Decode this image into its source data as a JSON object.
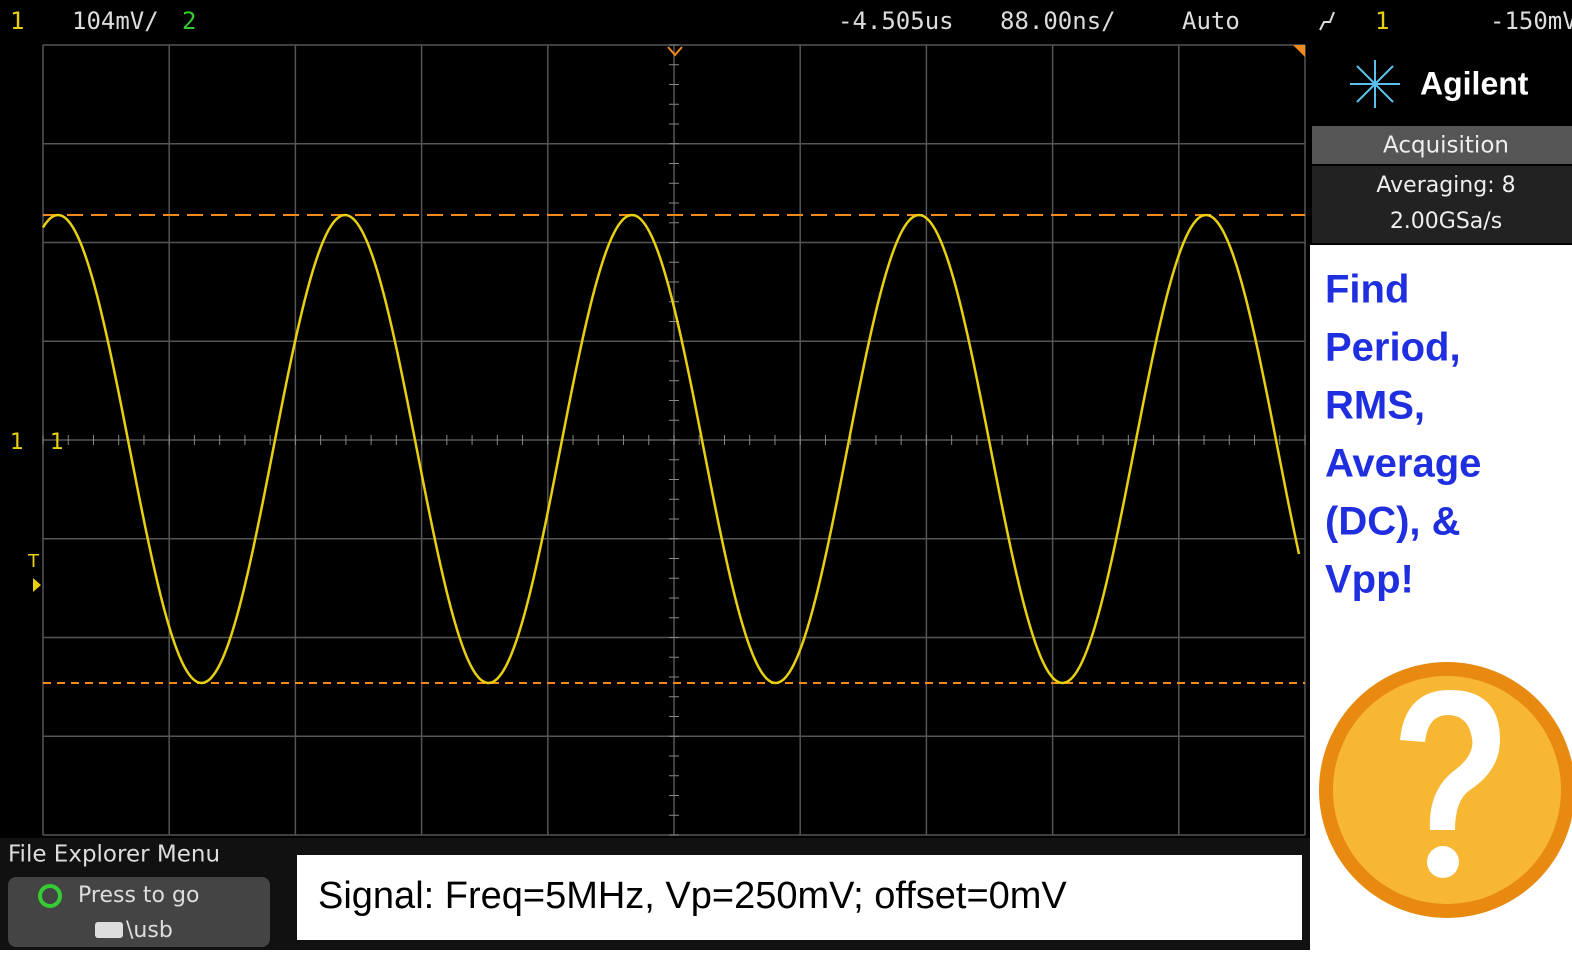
{
  "status_bar": {
    "channel": "1",
    "scale": "104mV/",
    "channel2": "2",
    "delay": "-4.505us",
    "timebase": "88.00ns/",
    "mode": "Auto",
    "trigger_source": "1",
    "trigger_level": "-150mV"
  },
  "markers": {
    "channel": "1",
    "trigger": "T"
  },
  "panel": {
    "brand": "Agilent",
    "section": "Acquisition",
    "averaging": "Averaging: 8",
    "rate": "2.00GSa/s"
  },
  "prompt": [
    "Find",
    "Period,",
    "RMS,",
    "Average",
    "(DC), &",
    "Vpp!"
  ],
  "menu": {
    "title": "File Explorer Menu",
    "button": "Press to go",
    "path": "\\usb"
  },
  "caption": "Signal: Freq=5MHz, Vp=250mV; offset=0mV"
}
